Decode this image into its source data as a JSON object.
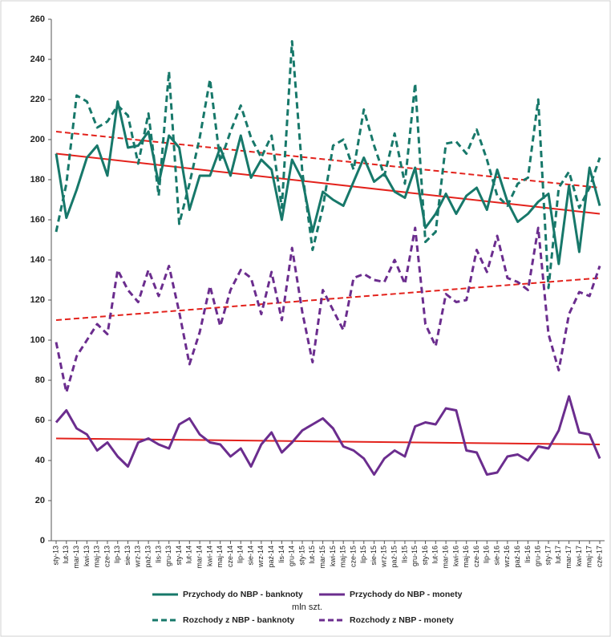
{
  "chart_data": {
    "type": "line",
    "y_label": "mln szt.",
    "categories": [
      "sty-13",
      "lut-13",
      "mar-13",
      "kwi-13",
      "maj-13",
      "cze-13",
      "lip-13",
      "sie-13",
      "wrz-13",
      "paź-13",
      "lis-13",
      "gru-13",
      "sty-14",
      "lut-14",
      "mar-14",
      "kwi-14",
      "maj-14",
      "cze-14",
      "lip-14",
      "sie-14",
      "wrz-14",
      "paź-14",
      "lis-14",
      "gru-14",
      "sty-15",
      "lut-15",
      "mar-15",
      "kwi-15",
      "maj-15",
      "cze-15",
      "lip-15",
      "sie-15",
      "wrz-15",
      "paź-15",
      "lis-15",
      "gru-15",
      "sty-16",
      "lut-16",
      "mar-16",
      "kwi-16",
      "maj-16",
      "cze-16",
      "lip-16",
      "sie-16",
      "wrz-16",
      "paź-16",
      "lis-16",
      "gru-16",
      "sty-17",
      "lut-17",
      "mar-17",
      "kwi-17",
      "maj-17",
      "cze-17"
    ],
    "series": [
      {
        "name": "Przychody do NBP - banknoty",
        "color": "#17786a",
        "dash": false,
        "values": [
          193,
          161,
          175,
          191,
          197,
          182,
          219,
          196,
          197,
          204,
          178,
          202,
          196,
          165,
          182,
          182,
          196,
          182,
          202,
          181,
          190,
          185,
          160,
          190,
          180,
          154,
          174,
          170,
          167,
          179,
          191,
          179,
          183,
          174,
          171,
          186,
          156,
          163,
          173,
          163,
          172,
          176,
          165,
          185,
          169,
          159,
          163,
          169,
          173,
          138,
          177,
          144,
          186,
          167
        ]
      },
      {
        "name": "Przychody do NBP - monety",
        "color": "#6b2d8e",
        "dash": false,
        "values": [
          59,
          65,
          56,
          53,
          45,
          49,
          42,
          37,
          49,
          51,
          48,
          46,
          58,
          61,
          53,
          49,
          48,
          42,
          46,
          37,
          48,
          54,
          44,
          49,
          55,
          58,
          61,
          56,
          47,
          45,
          41,
          33,
          41,
          45,
          42,
          57,
          59,
          58,
          66,
          65,
          45,
          44,
          33,
          34,
          42,
          43,
          40,
          47,
          46,
          55,
          72,
          54,
          53,
          41
        ]
      },
      {
        "name": "Rozchody z NBP - banknoty",
        "color": "#17786a",
        "dash": true,
        "values": [
          154,
          178,
          222,
          219,
          206,
          209,
          217,
          212,
          188,
          213,
          172,
          234,
          158,
          178,
          201,
          230,
          189,
          204,
          217,
          201,
          191,
          202,
          166,
          249,
          184,
          145,
          166,
          197,
          200,
          185,
          215,
          197,
          182,
          203,
          178,
          228,
          149,
          154,
          198,
          199,
          193,
          205,
          190,
          172,
          167,
          178,
          181,
          220,
          126,
          176,
          184,
          166,
          176,
          191
        ]
      },
      {
        "name": "Rozchody z NBP - monety",
        "color": "#6b2d8e",
        "dash": true,
        "values": [
          99,
          74,
          92,
          100,
          108,
          103,
          135,
          125,
          119,
          135,
          122,
          137,
          114,
          88,
          104,
          127,
          107,
          125,
          135,
          131,
          113,
          134,
          110,
          146,
          114,
          89,
          125,
          115,
          105,
          131,
          133,
          130,
          129,
          140,
          128,
          156,
          108,
          97,
          123,
          119,
          120,
          145,
          134,
          152,
          131,
          129,
          125,
          156,
          103,
          85,
          113,
          124,
          122,
          137
        ]
      }
    ],
    "trendlines": [
      {
        "color": "#e3221c",
        "dash": false,
        "values": [
          193,
          163
        ]
      },
      {
        "color": "#e3221c",
        "dash": false,
        "values": [
          51,
          48
        ]
      },
      {
        "color": "#e3221c",
        "dash": true,
        "values": [
          204,
          176
        ]
      },
      {
        "color": "#e3221c",
        "dash": true,
        "values": [
          110,
          131
        ]
      }
    ],
    "ylim": [
      0,
      260
    ],
    "yticks": [
      0,
      20,
      40,
      60,
      80,
      100,
      120,
      140,
      160,
      180,
      200,
      220,
      240,
      260
    ],
    "grid": false
  }
}
